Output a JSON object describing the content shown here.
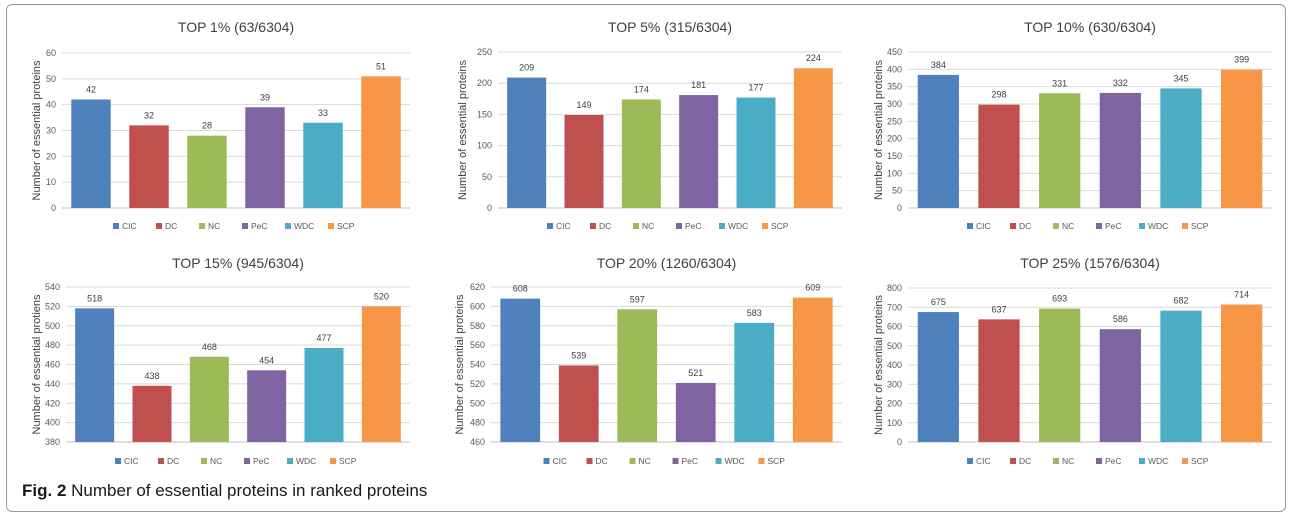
{
  "figure": {
    "caption_label": "Fig. 2",
    "caption_text": "Number of essential proteins in ranked proteins"
  },
  "series_colors": {
    "CIC": "#4F81BD",
    "DC": "#C0504D",
    "NC": "#9BBB59",
    "PeC": "#8064A2",
    "WDC": "#4BACC6",
    "SCP": "#F79646"
  },
  "chart_data": [
    {
      "type": "bar",
      "title": "TOP 1% (63/6304)",
      "ylabel": "Number of essential proteins",
      "categories": [
        "CIC",
        "DC",
        "NC",
        "PeC",
        "WDC",
        "SCP"
      ],
      "values": [
        42,
        32,
        28,
        39,
        33,
        51
      ],
      "ylim": [
        0,
        60
      ],
      "yticks": [
        0,
        10,
        20,
        30,
        40,
        50,
        60
      ],
      "grid": true,
      "legend": "bottom"
    },
    {
      "type": "bar",
      "title": "TOP 5% (315/6304)",
      "ylabel": "Number of essential proteins",
      "categories": [
        "CIC",
        "DC",
        "NC",
        "PeC",
        "WDC",
        "SCP"
      ],
      "values": [
        209,
        149,
        174,
        181,
        177,
        224
      ],
      "ylim": [
        0,
        250
      ],
      "yticks": [
        0,
        50,
        100,
        150,
        200,
        250
      ],
      "grid": true,
      "legend": "bottom"
    },
    {
      "type": "bar",
      "title": "TOP 10% (630/6304)",
      "ylabel": "Number of essential proteins",
      "categories": [
        "CIC",
        "DC",
        "NC",
        "PeC",
        "WDC",
        "SCP"
      ],
      "values": [
        384,
        298,
        331,
        332,
        345,
        399
      ],
      "ylim": [
        0,
        450
      ],
      "yticks": [
        0,
        50,
        100,
        150,
        200,
        250,
        300,
        350,
        400,
        450
      ],
      "grid": true,
      "legend": "bottom"
    },
    {
      "type": "bar",
      "title": "TOP 15% (945/6304)",
      "ylabel": "Number of essential protiens",
      "categories": [
        "CIC",
        "DC",
        "NC",
        "PeC",
        "WDC",
        "SCP"
      ],
      "values": [
        518,
        438,
        468,
        454,
        477,
        520
      ],
      "ylim": [
        380,
        540
      ],
      "yticks": [
        380,
        400,
        420,
        440,
        460,
        480,
        500,
        520,
        540
      ],
      "grid": true,
      "legend": "bottom"
    },
    {
      "type": "bar",
      "title": "TOP 20% (1260/6304)",
      "ylabel": "Number of essential proteins",
      "categories": [
        "CIC",
        "DC",
        "NC",
        "PeC",
        "WDC",
        "SCP"
      ],
      "values": [
        608,
        539,
        597,
        521,
        583,
        609
      ],
      "ylim": [
        460,
        620
      ],
      "yticks": [
        460,
        480,
        500,
        520,
        540,
        560,
        580,
        600,
        620
      ],
      "grid": true,
      "legend": "bottom"
    },
    {
      "type": "bar",
      "title": "TOP 25% (1576/6304)",
      "ylabel": "Number of essential proteins",
      "categories": [
        "CIC",
        "DC",
        "NC",
        "PeC",
        "WDC",
        "SCP"
      ],
      "values": [
        675,
        637,
        693,
        586,
        682,
        714
      ],
      "ylim": [
        0,
        800
      ],
      "yticks": [
        0,
        100,
        200,
        300,
        400,
        500,
        600,
        700,
        800
      ],
      "grid": true,
      "legend": "bottom"
    }
  ]
}
